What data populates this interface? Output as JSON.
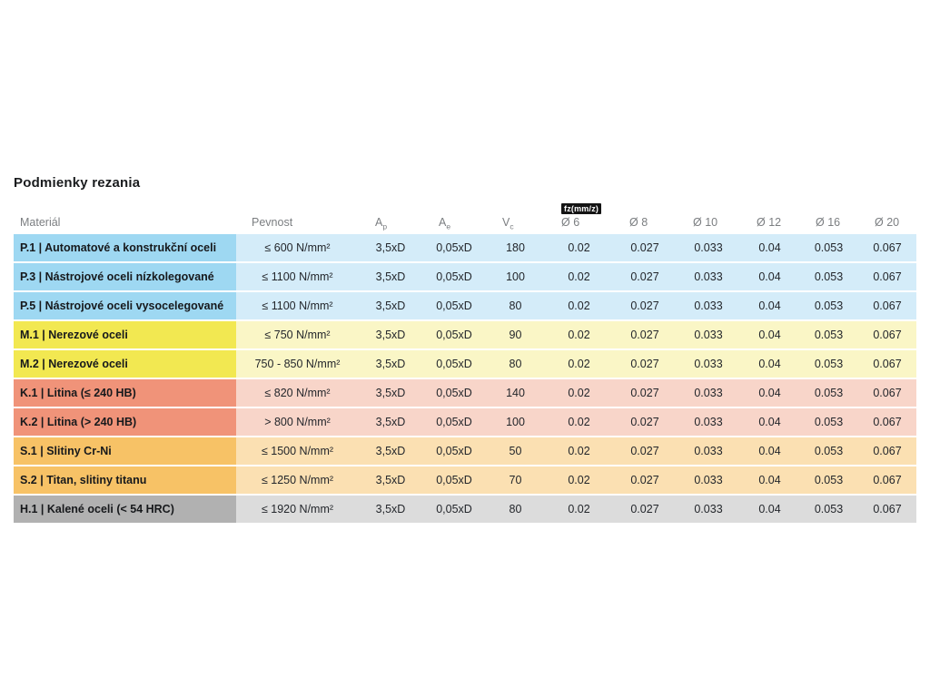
{
  "page": {
    "title": "Podmienky rezania"
  },
  "colors": {
    "P": {
      "label_bg": "#9ed8f2",
      "cell_bg": "#d4ecf9"
    },
    "M": {
      "label_bg": "#f2e851",
      "cell_bg": "#faf6c6"
    },
    "K": {
      "label_bg": "#f09379",
      "cell_bg": "#f8d5c9"
    },
    "S": {
      "label_bg": "#f7c266",
      "cell_bg": "#fbe0b2"
    },
    "H": {
      "label_bg": "#b1b1b1",
      "cell_bg": "#dcdcdc"
    }
  },
  "table": {
    "header": {
      "material": "Materiál",
      "pevnost": "Pevnost",
      "ap_main": "A",
      "ap_sub": "p",
      "ae_main": "A",
      "ae_sub": "e",
      "vc_main": "V",
      "vc_sub": "c",
      "fz_badge": "fz(mm/z)",
      "d6": "Ø 6",
      "d8": "Ø 8",
      "d10": "Ø 10",
      "d12": "Ø 12",
      "d16": "Ø 16",
      "d20": "Ø 20"
    },
    "rows": [
      {
        "group": "P",
        "label": "P.1 | Automatové a konstrukční oceli",
        "pevnost": "≤ 600 N/mm²",
        "ap": "3,5xD",
        "ae": "0,05xD",
        "vc": "180",
        "fz6": "0.02",
        "fz8": "0.027",
        "fz10": "0.033",
        "fz12": "0.04",
        "fz16": "0.053",
        "fz20": "0.067"
      },
      {
        "group": "P",
        "label": "P.3 | Nástrojové oceli nízkolegované",
        "pevnost": "≤ 1100 N/mm²",
        "ap": "3,5xD",
        "ae": "0,05xD",
        "vc": "100",
        "fz6": "0.02",
        "fz8": "0.027",
        "fz10": "0.033",
        "fz12": "0.04",
        "fz16": "0.053",
        "fz20": "0.067"
      },
      {
        "group": "P",
        "label": "P.5 | Nástrojové oceli vysocelegované",
        "pevnost": "≤ 1100 N/mm²",
        "ap": "3,5xD",
        "ae": "0,05xD",
        "vc": "80",
        "fz6": "0.02",
        "fz8": "0.027",
        "fz10": "0.033",
        "fz12": "0.04",
        "fz16": "0.053",
        "fz20": "0.067"
      },
      {
        "group": "M",
        "label": "M.1 | Nerezové oceli",
        "pevnost": "≤ 750 N/mm²",
        "ap": "3,5xD",
        "ae": "0,05xD",
        "vc": "90",
        "fz6": "0.02",
        "fz8": "0.027",
        "fz10": "0.033",
        "fz12": "0.04",
        "fz16": "0.053",
        "fz20": "0.067"
      },
      {
        "group": "M",
        "label": "M.2 | Nerezové oceli",
        "pevnost": "750 - 850 N/mm²",
        "ap": "3,5xD",
        "ae": "0,05xD",
        "vc": "80",
        "fz6": "0.02",
        "fz8": "0.027",
        "fz10": "0.033",
        "fz12": "0.04",
        "fz16": "0.053",
        "fz20": "0.067"
      },
      {
        "group": "K",
        "label": "K.1 | Litina (≤ 240 HB)",
        "pevnost": "≤ 820 N/mm²",
        "ap": "3,5xD",
        "ae": "0,05xD",
        "vc": "140",
        "fz6": "0.02",
        "fz8": "0.027",
        "fz10": "0.033",
        "fz12": "0.04",
        "fz16": "0.053",
        "fz20": "0.067"
      },
      {
        "group": "K",
        "label": "K.2 | Litina (> 240 HB)",
        "pevnost": "> 800 N/mm²",
        "ap": "3,5xD",
        "ae": "0,05xD",
        "vc": "100",
        "fz6": "0.02",
        "fz8": "0.027",
        "fz10": "0.033",
        "fz12": "0.04",
        "fz16": "0.053",
        "fz20": "0.067"
      },
      {
        "group": "S",
        "label": "S.1 | Slitiny Cr-Ni",
        "pevnost": "≤ 1500 N/mm²",
        "ap": "3,5xD",
        "ae": "0,05xD",
        "vc": "50",
        "fz6": "0.02",
        "fz8": "0.027",
        "fz10": "0.033",
        "fz12": "0.04",
        "fz16": "0.053",
        "fz20": "0.067"
      },
      {
        "group": "S",
        "label": "S.2 | Titan, slitiny titanu",
        "pevnost": "≤ 1250 N/mm²",
        "ap": "3,5xD",
        "ae": "0,05xD",
        "vc": "70",
        "fz6": "0.02",
        "fz8": "0.027",
        "fz10": "0.033",
        "fz12": "0.04",
        "fz16": "0.053",
        "fz20": "0.067"
      },
      {
        "group": "H",
        "label": "H.1 | Kalené oceli (< 54 HRC)",
        "pevnost": "≤ 1920 N/mm²",
        "ap": "3,5xD",
        "ae": "0,05xD",
        "vc": "80",
        "fz6": "0.02",
        "fz8": "0.027",
        "fz10": "0.033",
        "fz12": "0.04",
        "fz16": "0.053",
        "fz20": "0.067"
      }
    ]
  }
}
